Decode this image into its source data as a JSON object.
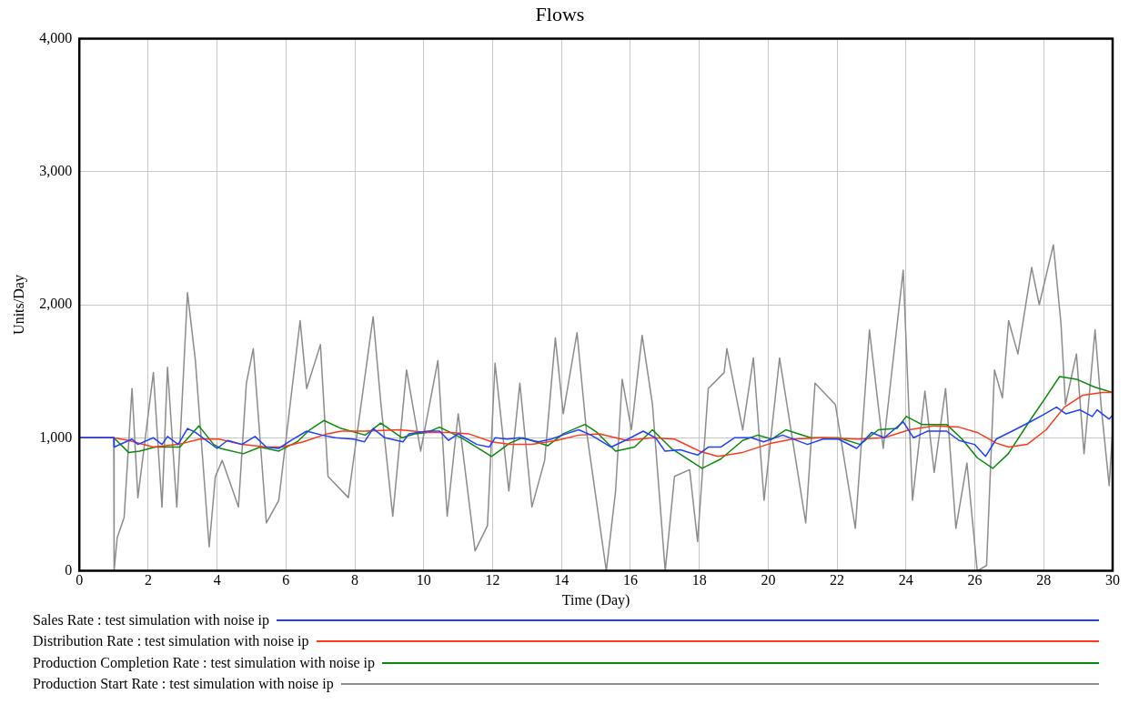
{
  "chart_data": {
    "type": "line",
    "title": "Flows",
    "xlabel": "Time (Day)",
    "ylabel": "Units/Day",
    "xlim": [
      0,
      30
    ],
    "xticks": [
      0,
      2,
      4,
      6,
      8,
      10,
      12,
      14,
      16,
      18,
      20,
      22,
      24,
      26,
      28,
      30
    ],
    "ylim": [
      0,
      4000
    ],
    "yticks": [
      0,
      {
        "value": 1000,
        "label": "1,000"
      },
      {
        "value": 2000,
        "label": "2,000"
      },
      {
        "value": 3000,
        "label": "3,000"
      },
      {
        "value": 4000,
        "label": "4,000"
      }
    ],
    "grid": true,
    "legend": "bottom",
    "marker": "none",
    "line_style": "solid",
    "series": [
      {
        "name": "Sales Rate : test simulation with noise ip",
        "color": "#1f3fff",
        "x": [
          0,
          1,
          1.01,
          1.53,
          1.7,
          2.15,
          2.4,
          2.56,
          2.87,
          3.14,
          3.37,
          4.0,
          4.3,
          4.72,
          5.1,
          5.43,
          5.79,
          6.15,
          6.6,
          7.05,
          7.43,
          7.96,
          8.28,
          8.53,
          8.87,
          9.4,
          9.57,
          10.1,
          10.46,
          10.72,
          11.0,
          11.54,
          11.9,
          12.07,
          12.43,
          12.79,
          13.33,
          13.7,
          14.14,
          14.5,
          14.86,
          15.44,
          15.93,
          16.37,
          16.73,
          17.0,
          17.45,
          17.95,
          18.26,
          18.62,
          19.02,
          19.51,
          19.87,
          20.42,
          21.14,
          21.59,
          22.04,
          22.57,
          23.0,
          23.37,
          23.92,
          24.22,
          24.63,
          25.18,
          25.54,
          25.99,
          26.31,
          26.62,
          27.16,
          27.61,
          27.97,
          28.37,
          28.64,
          29.05,
          29.41,
          29.55,
          29.9,
          30
        ],
        "values": [
          1000,
          1000,
          930,
          990,
          950,
          1000,
          950,
          1010,
          950,
          1070,
          1040,
          920,
          980,
          950,
          1010,
          930,
          920,
          980,
          1050,
          1020,
          1000,
          990,
          970,
          1070,
          1000,
          970,
          1030,
          1050,
          1050,
          980,
          1030,
          950,
          930,
          1000,
          990,
          1000,
          970,
          990,
          1030,
          1060,
          1020,
          930,
          990,
          1050,
          1000,
          900,
          910,
          870,
          930,
          930,
          1000,
          1000,
          970,
          1020,
          950,
          990,
          990,
          920,
          1040,
          1000,
          1120,
          1000,
          1050,
          1050,
          980,
          950,
          860,
          990,
          1060,
          1120,
          1170,
          1230,
          1180,
          1210,
          1160,
          1210,
          1140,
          1170
        ]
      },
      {
        "name": "Distribution Rate : test simulation with noise ip",
        "color": "#ff3a1a",
        "x": [
          0,
          1,
          1.43,
          2.15,
          2.87,
          3.5,
          4.05,
          4.72,
          5.43,
          5.9,
          6.5,
          7.2,
          7.6,
          8.3,
          9.3,
          10.1,
          10.72,
          11.3,
          11.97,
          12.5,
          13.14,
          13.86,
          14.5,
          15.1,
          15.9,
          16.64,
          17.28,
          18.0,
          18.54,
          19.26,
          20.1,
          20.7,
          21.6,
          22.6,
          23.37,
          24.1,
          24.82,
          25.54,
          26.07,
          26.62,
          26.98,
          27.52,
          28.07,
          28.6,
          29.14,
          29.7,
          30
        ],
        "values": [
          1000,
          1000,
          980,
          930,
          950,
          990,
          990,
          950,
          930,
          930,
          970,
          1030,
          1050,
          1050,
          1060,
          1040,
          1040,
          1030,
          970,
          950,
          950,
          980,
          1020,
          1030,
          980,
          1000,
          990,
          900,
          860,
          890,
          960,
          990,
          1000,
          990,
          1000,
          1060,
          1090,
          1080,
          1040,
          960,
          930,
          950,
          1060,
          1230,
          1320,
          1340,
          1340
        ]
      },
      {
        "name": "Production Completion Rate : test simulation with noise ip",
        "color": "#0a8a0a",
        "x": [
          0,
          1,
          1.43,
          1.75,
          2.2,
          2.56,
          2.92,
          3.47,
          3.9,
          4.1,
          4.76,
          5.25,
          5.79,
          6.33,
          6.69,
          7.1,
          7.6,
          8.3,
          8.75,
          9.37,
          9.74,
          10.1,
          10.46,
          11.09,
          11.97,
          12.5,
          12.87,
          13.6,
          14.05,
          14.68,
          15.03,
          15.57,
          16.12,
          16.64,
          17.19,
          18.08,
          18.62,
          19.26,
          19.7,
          20.1,
          20.51,
          21.23,
          22.04,
          22.67,
          23.2,
          23.74,
          24.01,
          24.46,
          25.18,
          25.63,
          26.07,
          26.52,
          26.97,
          27.6,
          28.05,
          28.46,
          28.95,
          29.49,
          30
        ],
        "values": [
          1000,
          1000,
          890,
          900,
          930,
          930,
          930,
          1090,
          950,
          920,
          880,
          930,
          900,
          970,
          1060,
          1130,
          1070,
          1020,
          1110,
          1000,
          1030,
          1040,
          1080,
          1000,
          860,
          960,
          1000,
          940,
          1030,
          1100,
          1040,
          900,
          930,
          1060,
          920,
          770,
          840,
          980,
          1020,
          990,
          1060,
          1000,
          1000,
          950,
          1060,
          1070,
          1160,
          1100,
          1100,
          990,
          850,
          770,
          880,
          1130,
          1300,
          1460,
          1440,
          1380,
          1340
        ]
      },
      {
        "name": "Production Start Rate : test simulation with noise ip",
        "color": "#8c8c8c",
        "x": [
          0,
          1,
          1.01,
          1.1,
          1.3,
          1.53,
          1.7,
          2.15,
          2.4,
          2.56,
          2.83,
          3.14,
          3.37,
          3.77,
          3.95,
          4.15,
          4.62,
          4.85,
          5.05,
          5.43,
          5.79,
          6.41,
          6.6,
          7.0,
          7.22,
          7.81,
          8.53,
          8.75,
          9.1,
          9.5,
          9.91,
          10.41,
          10.68,
          11.0,
          11.49,
          11.85,
          12.07,
          12.47,
          12.79,
          13.14,
          13.51,
          13.82,
          14.05,
          14.45,
          14.72,
          15.3,
          15.57,
          15.76,
          16.03,
          16.34,
          16.64,
          17.01,
          17.28,
          17.72,
          17.95,
          18.26,
          18.72,
          18.8,
          19.26,
          19.57,
          19.88,
          20.33,
          21.09,
          21.36,
          21.95,
          22.53,
          22.94,
          23.34,
          23.92,
          24.19,
          24.55,
          24.82,
          25.15,
          25.45,
          25.77,
          26.07,
          26.34,
          26.57,
          26.8,
          26.98,
          27.25,
          27.65,
          27.87,
          28.28,
          28.5,
          28.63,
          28.95,
          29.17,
          29.49,
          29.67,
          29.9,
          30
        ],
        "values": [
          1000,
          1000,
          0,
          250,
          400,
          1370,
          550,
          1490,
          480,
          1530,
          480,
          2090,
          1580,
          180,
          710,
          830,
          480,
          1410,
          1670,
          360,
          530,
          1880,
          1370,
          1700,
          710,
          550,
          1910,
          1270,
          410,
          1510,
          900,
          1580,
          410,
          1180,
          150,
          340,
          1560,
          600,
          1410,
          480,
          830,
          1750,
          1180,
          1790,
          1060,
          0,
          600,
          1440,
          1060,
          1770,
          1250,
          0,
          710,
          760,
          220,
          1370,
          1490,
          1670,
          1060,
          1600,
          530,
          1600,
          360,
          1410,
          1250,
          320,
          1810,
          920,
          2260,
          530,
          1350,
          740,
          1370,
          320,
          810,
          0,
          40,
          1510,
          1300,
          1880,
          1630,
          2280,
          2000,
          2450,
          1860,
          1250,
          1630,
          880,
          1810,
          1230,
          640,
          1060
        ]
      }
    ]
  }
}
